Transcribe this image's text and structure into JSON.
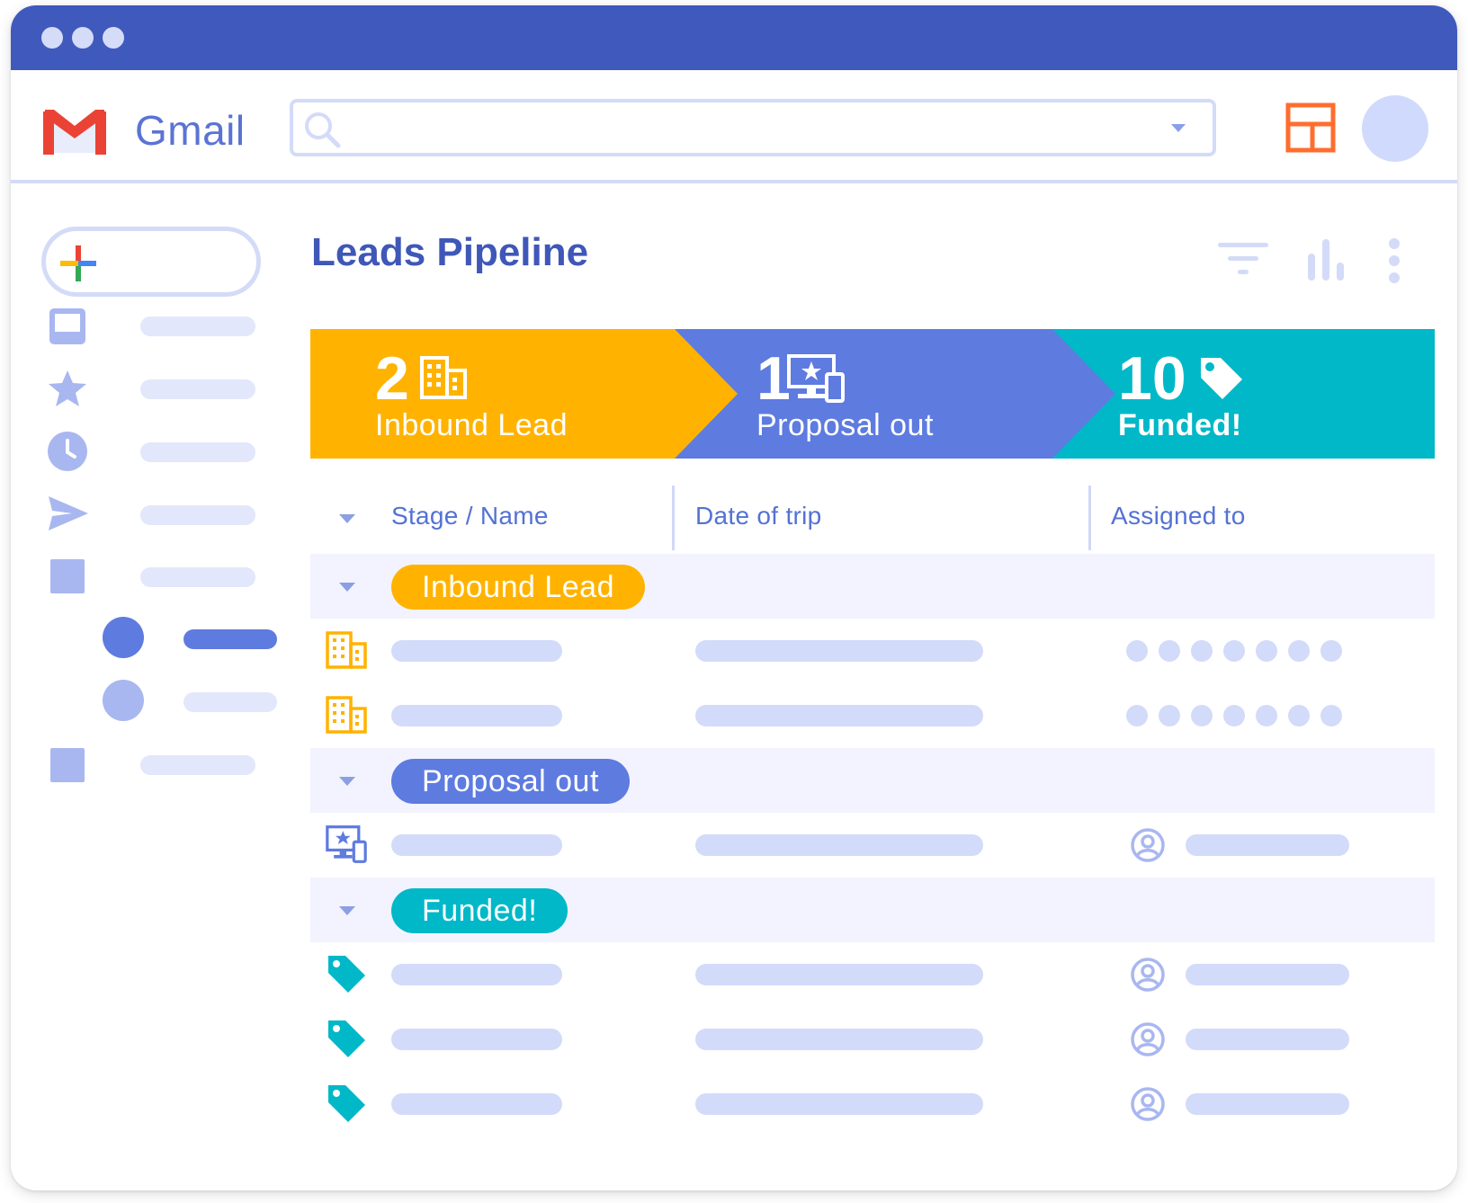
{
  "app": {
    "name": "Gmail"
  },
  "colors": {
    "titlebar": "#4059bd",
    "inbound": "#ffb300",
    "proposal": "#5e7be0",
    "funded": "#00b8c8",
    "accent": "#3f57b8",
    "layout_icon": "#ff6d2e"
  },
  "header": {
    "search": {
      "value": "",
      "placeholder": ""
    },
    "icons": [
      "search-icon",
      "dropdown-caret-icon",
      "layout-icon",
      "avatar"
    ]
  },
  "sidebar": {
    "compose_icon": "plus-icon",
    "items": [
      {
        "icon": "inbox-icon"
      },
      {
        "icon": "star-icon"
      },
      {
        "icon": "clock-icon"
      },
      {
        "icon": "send-icon"
      },
      {
        "icon": "square-icon"
      }
    ],
    "labels": [
      {
        "color": "#5e7be0",
        "selected": true
      },
      {
        "color": "#a9b7f0",
        "selected": false
      }
    ],
    "last_item_icon": "square-icon"
  },
  "main": {
    "title": "Leads Pipeline",
    "toolbar_icons": [
      "filter-icon",
      "bar-chart-icon",
      "more-vert-icon"
    ],
    "stages": [
      {
        "count": "2",
        "label": "Inbound Lead",
        "icon": "building-icon",
        "color": "#ffb300"
      },
      {
        "count": "1",
        "label": "Proposal out",
        "icon": "devices-icon",
        "color": "#5e7be0"
      },
      {
        "count": "10",
        "label": "Funded!",
        "icon": "tag-icon",
        "color": "#00b8c8"
      }
    ],
    "columns": [
      "Stage / Name",
      "Date of trip",
      "Assigned to"
    ],
    "groups": [
      {
        "label": "Inbound Lead",
        "color": "#ffb300",
        "row_icon": "building-icon",
        "rows": 2
      },
      {
        "label": "Proposal out",
        "color": "#5e7be0",
        "row_icon": "devices-icon",
        "rows": 1
      },
      {
        "label": "Funded!",
        "color": "#00b8c8",
        "row_icon": "tag-icon",
        "rows": 3
      }
    ]
  }
}
